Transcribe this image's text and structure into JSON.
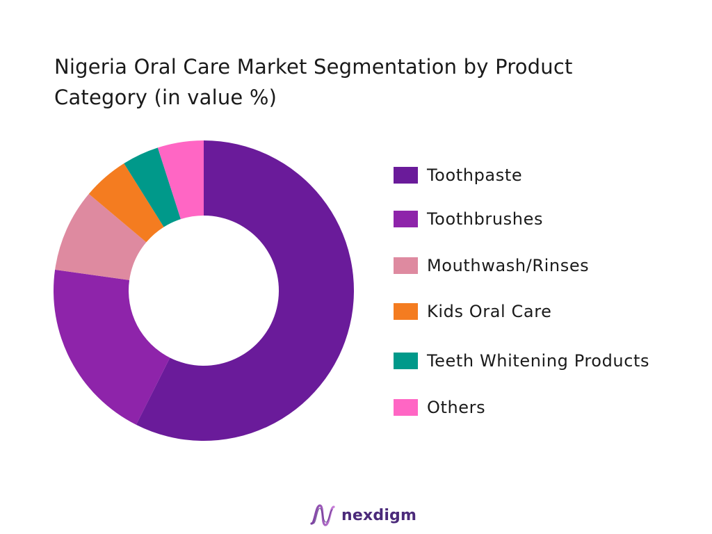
{
  "title_lines": [
    "Nigeria Oral Care Market Segmentation by Product",
    "Category (in value %)"
  ],
  "chart_data": {
    "type": "pie",
    "variant": "donut",
    "title": "Nigeria Oral Care Market Segmentation by Product Category (in value %)",
    "unit": "%",
    "legend_position": "right",
    "categories": [
      "Toothpaste",
      "Toothbrushes",
      "Mouthwash/Rinses",
      "Kids Oral Care",
      "Teeth Whitening Products",
      "Others"
    ],
    "values": [
      58,
      20,
      9,
      5,
      4,
      5
    ],
    "colors": [
      "#6a1b9a",
      "#8e24aa",
      "#de8aa0",
      "#f47c20",
      "#00998a",
      "#ff66c4"
    ]
  },
  "brand": {
    "name": "nexdigm",
    "logo_icon": "wave-logo-icon",
    "color": "#4b2a7a"
  }
}
